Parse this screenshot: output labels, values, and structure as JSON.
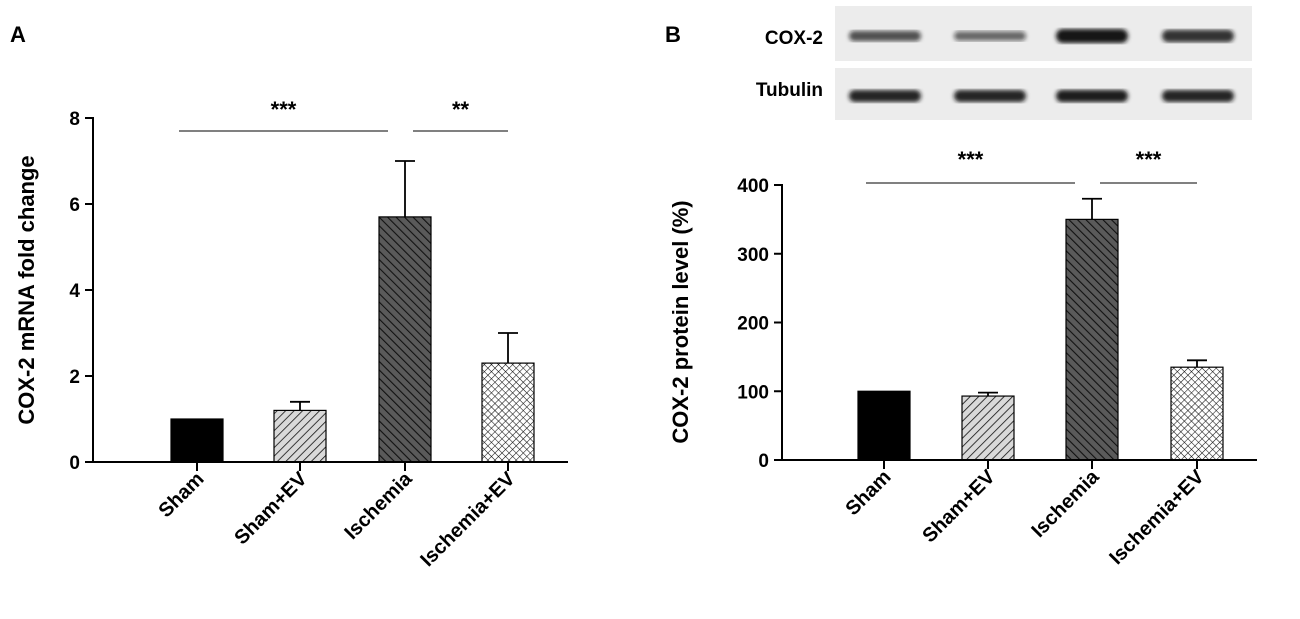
{
  "chart_data": [
    {
      "panel": "A",
      "type": "bar",
      "ylabel": "COX-2 mRNA fold change",
      "categories": [
        "Sham",
        "Sham+EV",
        "Ischemia",
        "Ischemia+EV"
      ],
      "values": [
        1.0,
        1.2,
        5.7,
        2.3
      ],
      "errors": [
        0.0,
        0.2,
        1.3,
        0.7
      ],
      "fills": [
        "solid",
        "hatch-light",
        "hatch-dark",
        "crosshatch"
      ],
      "ylim": [
        0,
        8
      ],
      "yticks": [
        "0",
        "2",
        "4",
        "6",
        "8"
      ],
      "significance": [
        {
          "from": "Sham",
          "to": "Ischemia",
          "label": "***"
        },
        {
          "from": "Ischemia",
          "to": "Ischemia+EV",
          "label": "**"
        }
      ]
    },
    {
      "panel": "B",
      "type": "bar",
      "ylabel": "COX-2 protein level (%)",
      "categories": [
        "Sham",
        "Sham+EV",
        "Ischemia",
        "Ischemia+EV"
      ],
      "values": [
        100,
        93,
        350,
        135
      ],
      "errors": [
        0,
        5,
        30,
        10
      ],
      "fills": [
        "solid",
        "hatch-light",
        "hatch-dark",
        "crosshatch"
      ],
      "ylim": [
        0,
        400
      ],
      "yticks": [
        "0",
        "100",
        "200",
        "300",
        "400"
      ],
      "significance": [
        {
          "from": "Sham",
          "to": "Ischemia",
          "label": "***"
        },
        {
          "from": "Ischemia",
          "to": "Ischemia+EV",
          "label": "***"
        }
      ]
    }
  ],
  "western_blot": {
    "bands": [
      {
        "label": "COX-2",
        "intensities": [
          0.55,
          0.4,
          1.0,
          0.8
        ]
      },
      {
        "label": "Tubulin",
        "intensities": [
          0.9,
          0.9,
          0.95,
          0.9
        ]
      }
    ]
  },
  "colors": {
    "bar_solid": "#000000",
    "hatch_light_bg": "#d9d9d9",
    "hatch_dark_bg": "#5a5a5a",
    "axis": "#000000",
    "sig_line": "#808080",
    "blot_bg": "#ececec",
    "band": "#141414"
  }
}
